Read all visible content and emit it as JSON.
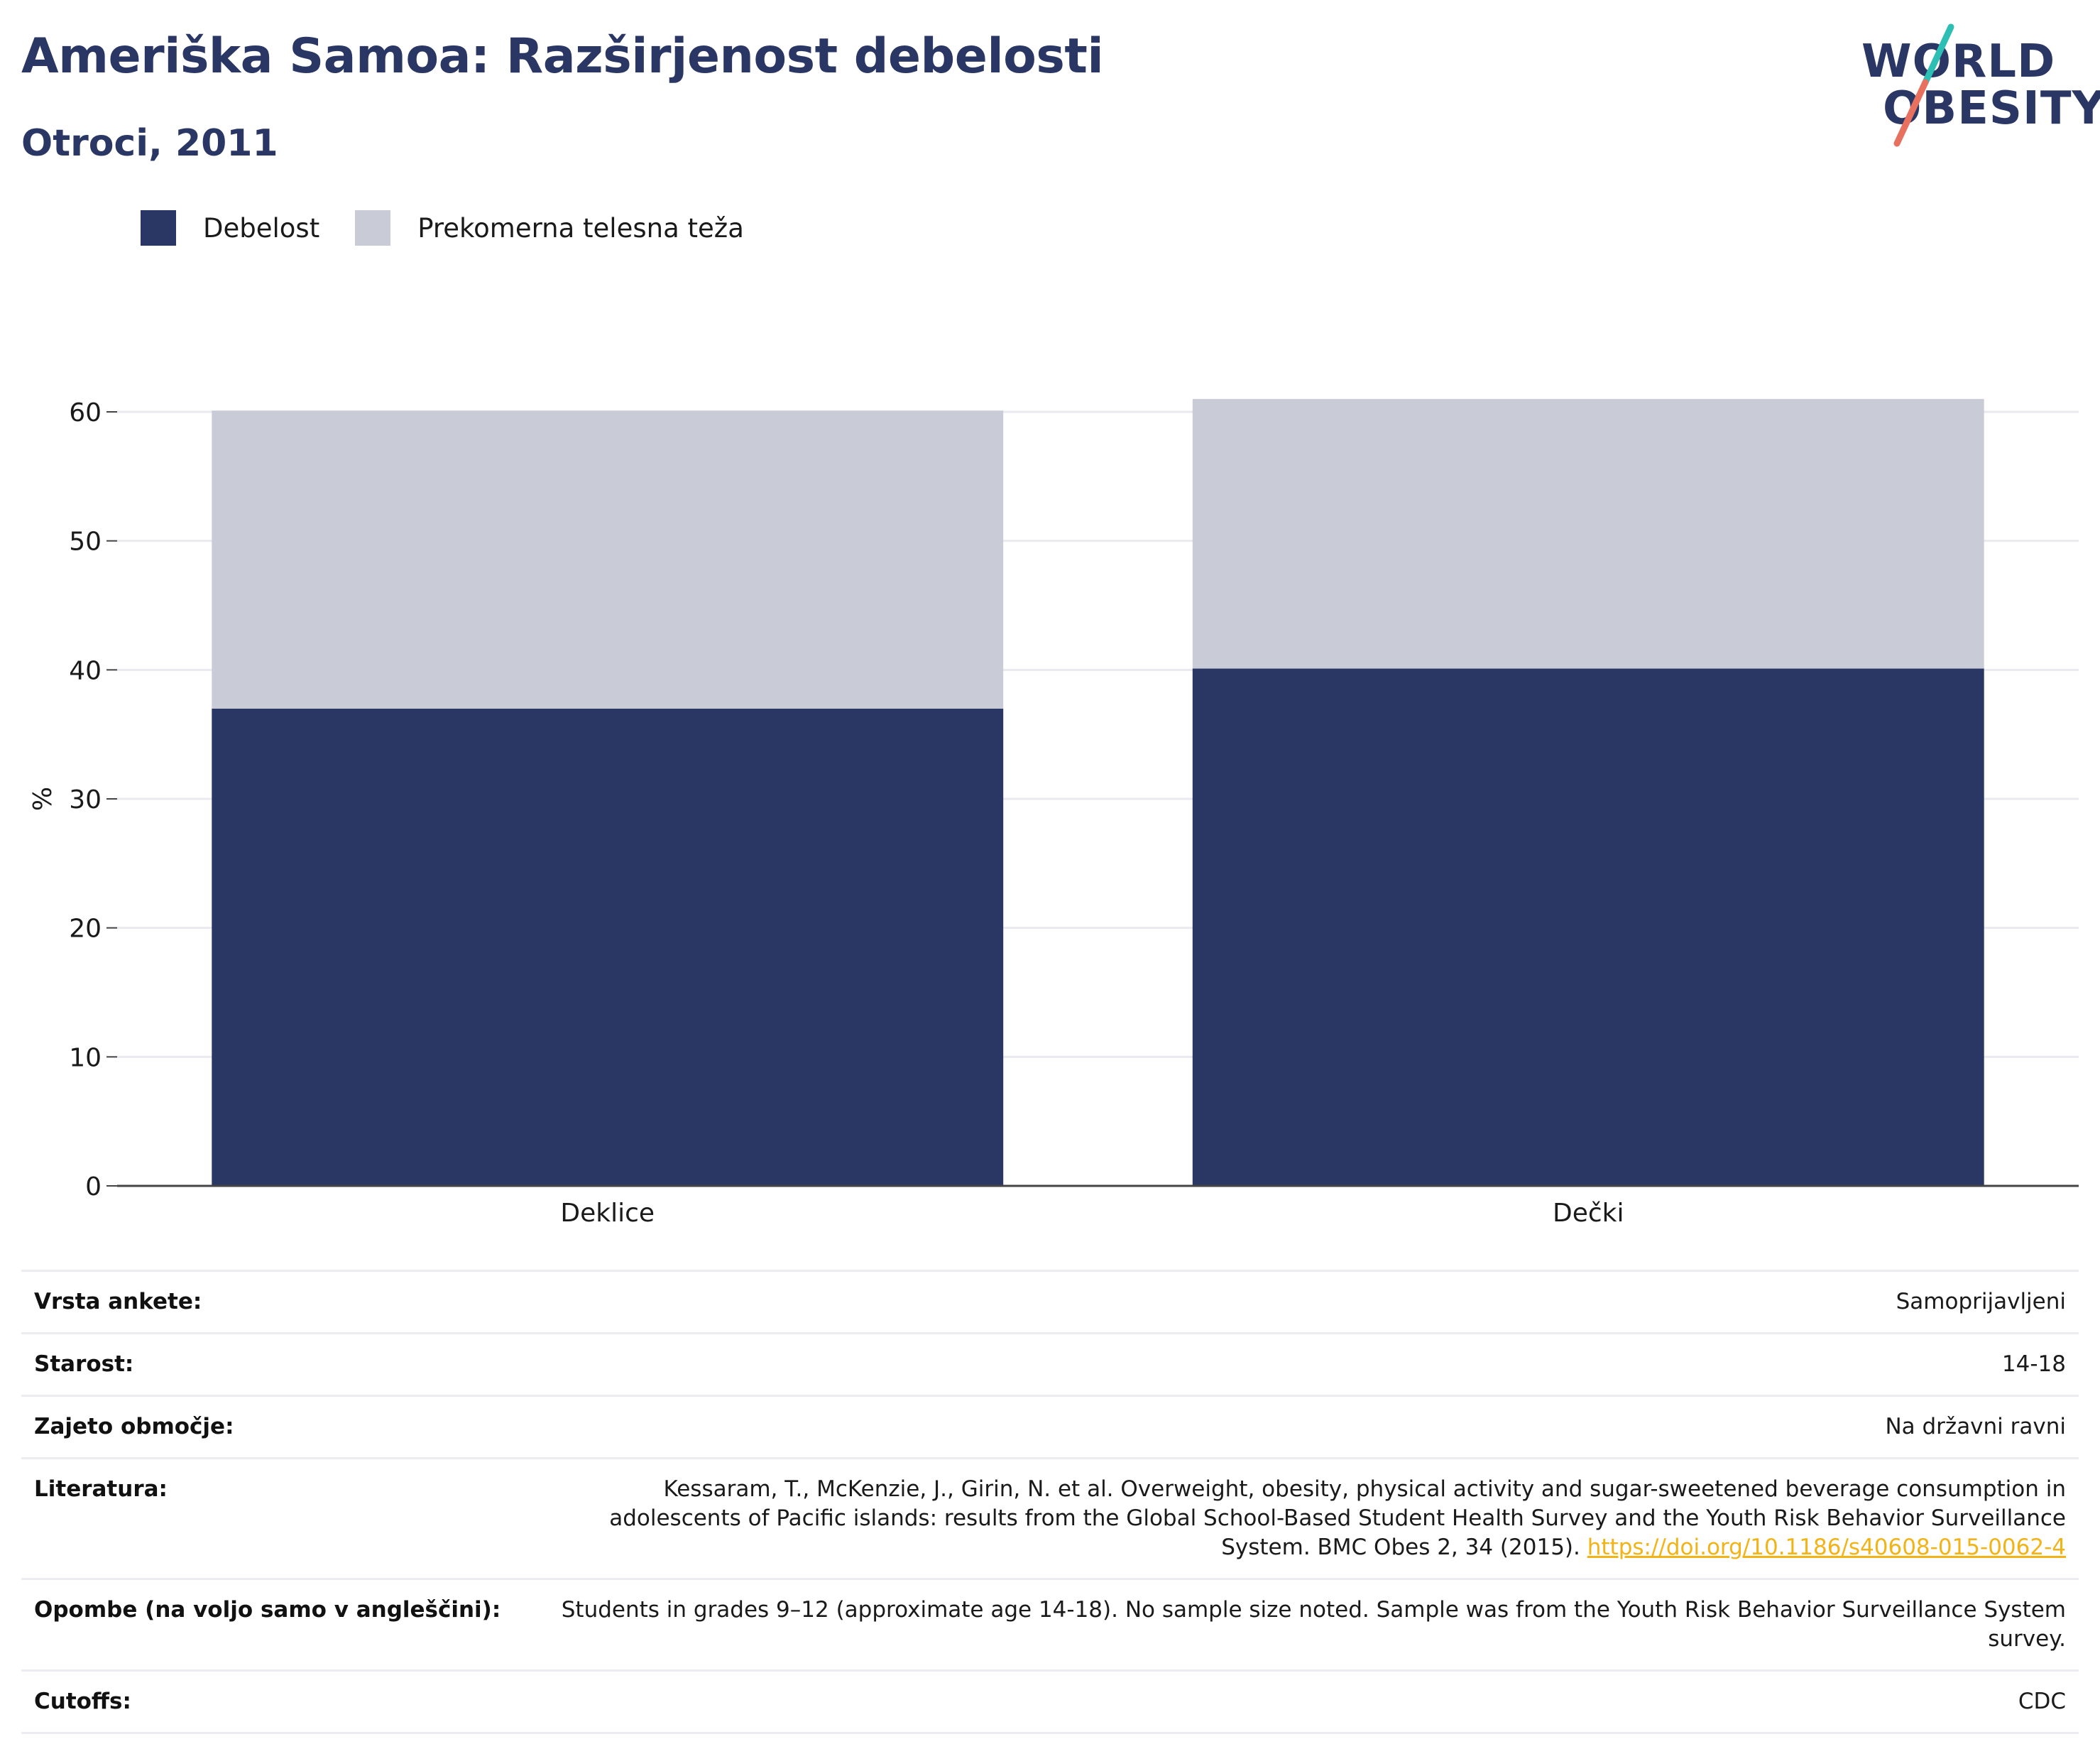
{
  "header": {
    "title": "Ameriška Samoa: Razširjenost debelosti",
    "subtitle": "Otroci, 2011"
  },
  "logo": {
    "line1": "WORLD",
    "line2": "OBESITY",
    "colors": {
      "text": "#2a3764",
      "slash_top": "#2dbfb3",
      "slash_bottom": "#e8705f"
    }
  },
  "colors": {
    "obesity": "#2a3764",
    "overweight": "#c9ccd7",
    "grid": "#e9e9ef",
    "axis": "#444444",
    "link": "#f2b317"
  },
  "chart_data": {
    "type": "bar",
    "stacked": true,
    "categories": [
      "Deklice",
      "Dečki"
    ],
    "series": [
      {
        "name": "Debelost",
        "values": [
          37,
          40.1
        ]
      },
      {
        "name": "Prekomerna telesna teža",
        "values": [
          23.1,
          20.9
        ]
      }
    ],
    "ylabel": "%",
    "ylim": [
      0,
      60
    ],
    "yticks": [
      "0",
      "10",
      "20",
      "30",
      "40",
      "50",
      "60"
    ],
    "grid": true,
    "legend_position": "top-left"
  },
  "meta": {
    "rows": [
      {
        "key": "Vrsta ankete:",
        "value": "Samoprijavljeni"
      },
      {
        "key": "Starost:",
        "value": "14-18"
      },
      {
        "key": "Zajeto območje:",
        "value": "Na državni ravni"
      },
      {
        "key": "Literatura:",
        "value": "Kessaram, T., McKenzie, J., Girin, N. et al. Overweight, obesity, physical activity and sugar-sweetened beverage consumption in adolescents of Pacific islands: results from the Global School-Based Student Health Survey and the Youth Risk Behavior Surveillance System. BMC Obes 2, 34 (2015).",
        "link": "https://doi.org/10.1186/s40608-015-0062-4"
      },
      {
        "key": "Opombe (na voljo samo v angleščini):",
        "value": "Students in grades 9–12 (approximate age 14-18). No sample size noted. Sample was from the Youth Risk Behavior Surveillance System survey."
      },
      {
        "key": "Cutoffs:",
        "value": "CDC"
      }
    ]
  }
}
